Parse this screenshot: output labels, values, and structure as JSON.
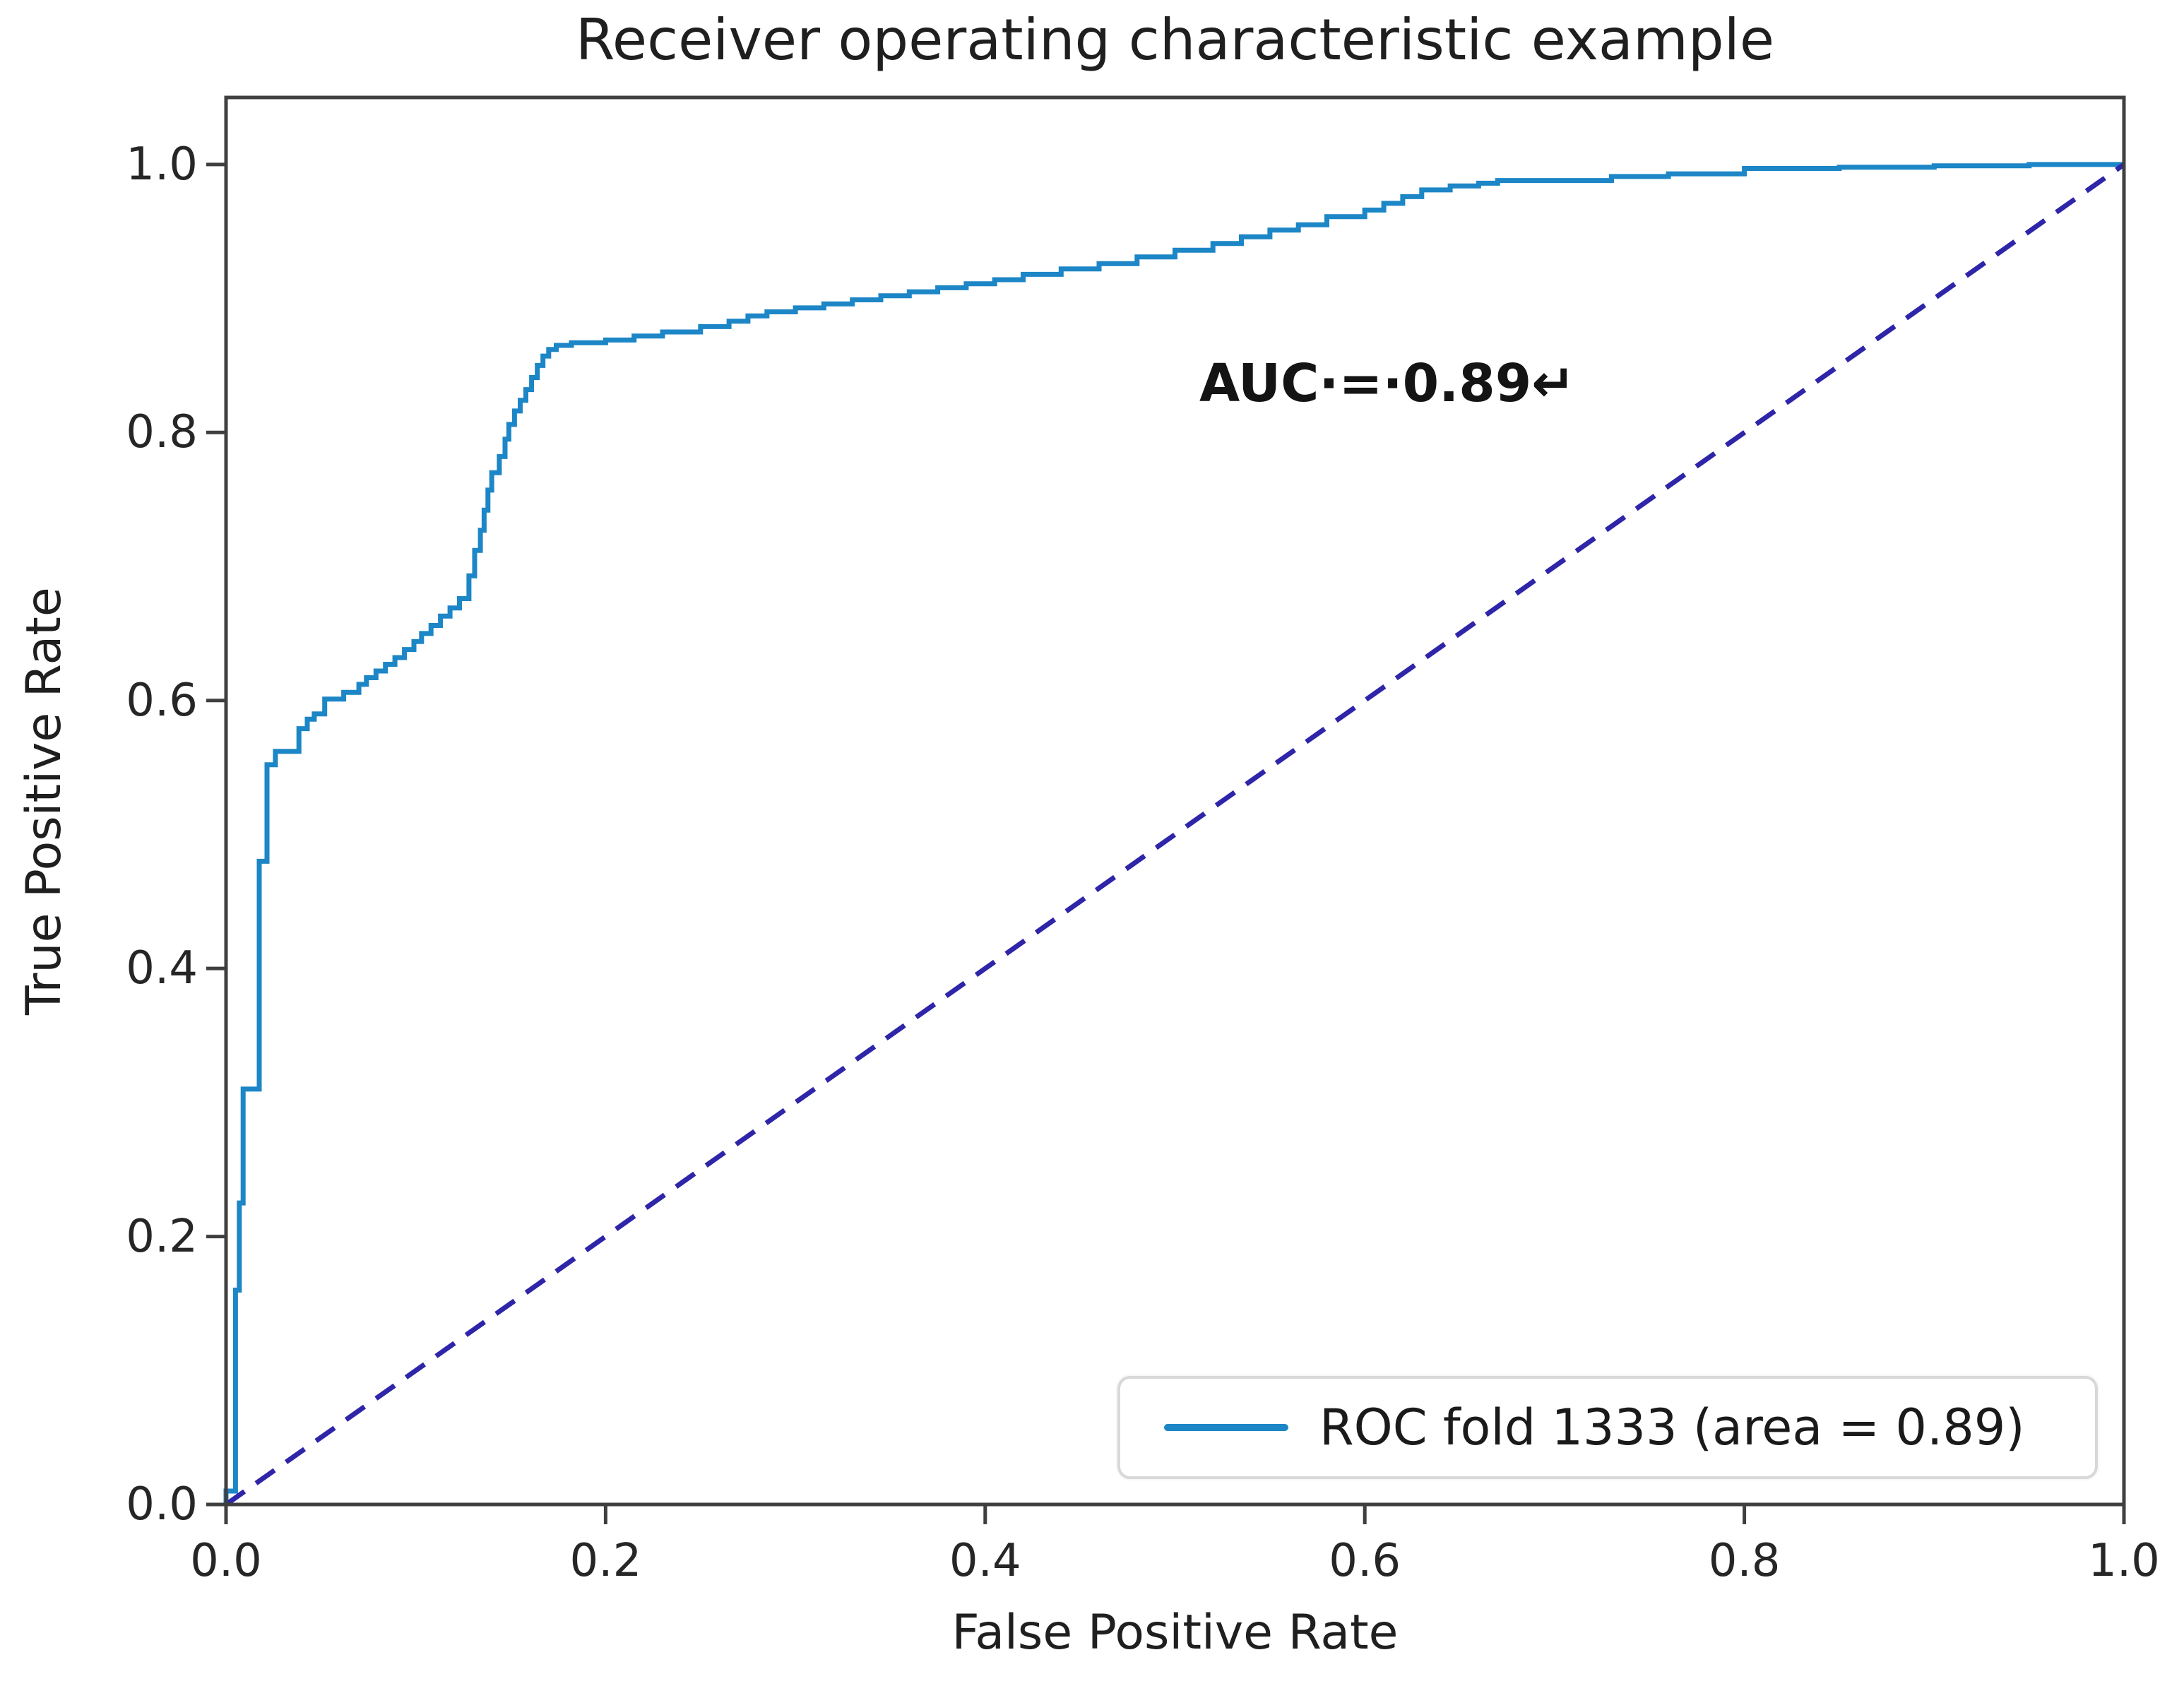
{
  "chart_data": {
    "type": "line",
    "title": "Receiver operating characteristic example",
    "xlabel": "False Positive Rate",
    "ylabel": "True Positive Rate",
    "xlim": [
      0.0,
      1.0
    ],
    "ylim": [
      0.0,
      1.05
    ],
    "xticks": [
      0.0,
      0.2,
      0.4,
      0.6,
      0.8,
      1.0
    ],
    "yticks": [
      0.0,
      0.2,
      0.4,
      0.6,
      0.8,
      1.0
    ],
    "grid": false,
    "axis_color": "#3f3f3f",
    "annotation": {
      "text": "AUC·=·0.89↵",
      "x": 0.513,
      "y": 0.833
    },
    "legend": {
      "position": "lower right",
      "entries": [
        {
          "label": "ROC fold 1333 (area = 0.89)",
          "color": "#1c86c6"
        }
      ]
    },
    "series": [
      {
        "name": "ROC fold 1333 (area = 0.89)",
        "role": "roc-curve",
        "color": "#1c86c6",
        "line_width": 7,
        "style": "step",
        "points": [
          [
            0,
            0
          ],
          [
            0.005,
            0.01
          ],
          [
            0.005,
            0.16
          ],
          [
            0.007,
            0.16
          ],
          [
            0.007,
            0.225
          ],
          [
            0.009,
            0.225
          ],
          [
            0.009,
            0.305
          ],
          [
            0.0105,
            0.31
          ],
          [
            0.0175,
            0.31
          ],
          [
            0.0175,
            0.48
          ],
          [
            0.0216,
            0.48
          ],
          [
            0.0216,
            0.534
          ],
          [
            0.026,
            0.552
          ],
          [
            0.0285,
            0.562
          ],
          [
            0.0384,
            0.562
          ],
          [
            0.0384,
            0.569
          ],
          [
            0.0428,
            0.579
          ],
          [
            0.0465,
            0.586
          ],
          [
            0.052,
            0.59
          ],
          [
            0.062,
            0.601
          ],
          [
            0.07,
            0.606
          ],
          [
            0.074,
            0.612
          ],
          [
            0.079,
            0.617
          ],
          [
            0.084,
            0.622
          ],
          [
            0.089,
            0.627
          ],
          [
            0.094,
            0.632
          ],
          [
            0.099,
            0.638
          ],
          [
            0.103,
            0.644
          ],
          [
            0.108,
            0.65
          ],
          [
            0.113,
            0.656
          ],
          [
            0.118,
            0.663
          ],
          [
            0.123,
            0.669
          ],
          [
            0.128,
            0.676
          ],
          [
            0.131,
            0.693
          ],
          [
            0.134,
            0.712
          ],
          [
            0.136,
            0.727
          ],
          [
            0.138,
            0.742
          ],
          [
            0.14,
            0.757
          ],
          [
            0.144,
            0.77
          ],
          [
            0.147,
            0.782
          ],
          [
            0.149,
            0.795
          ],
          [
            0.152,
            0.806
          ],
          [
            0.155,
            0.816
          ],
          [
            0.158,
            0.824
          ],
          [
            0.161,
            0.832
          ],
          [
            0.164,
            0.841
          ],
          [
            0.167,
            0.85
          ],
          [
            0.17,
            0.857
          ],
          [
            0.174,
            0.862
          ],
          [
            0.182,
            0.865
          ],
          [
            0.2,
            0.867
          ],
          [
            0.215,
            0.869
          ],
          [
            0.23,
            0.872
          ],
          [
            0.25,
            0.875
          ],
          [
            0.265,
            0.879
          ],
          [
            0.275,
            0.883
          ],
          [
            0.285,
            0.887
          ],
          [
            0.3,
            0.89
          ],
          [
            0.315,
            0.893
          ],
          [
            0.33,
            0.896
          ],
          [
            0.345,
            0.899
          ],
          [
            0.36,
            0.902
          ],
          [
            0.375,
            0.905
          ],
          [
            0.39,
            0.908
          ],
          [
            0.405,
            0.911
          ],
          [
            0.42,
            0.914
          ],
          [
            0.44,
            0.918
          ],
          [
            0.46,
            0.922
          ],
          [
            0.48,
            0.926
          ],
          [
            0.5,
            0.931
          ],
          [
            0.52,
            0.936
          ],
          [
            0.535,
            0.941
          ],
          [
            0.55,
            0.946
          ],
          [
            0.565,
            0.951
          ],
          [
            0.58,
            0.955
          ],
          [
            0.6,
            0.961
          ],
          [
            0.61,
            0.966
          ],
          [
            0.62,
            0.971
          ],
          [
            0.63,
            0.976
          ],
          [
            0.645,
            0.981
          ],
          [
            0.66,
            0.984
          ],
          [
            0.67,
            0.986
          ],
          [
            0.73,
            0.988
          ],
          [
            0.76,
            0.991
          ],
          [
            0.8,
            0.993
          ],
          [
            0.85,
            0.997
          ],
          [
            0.9,
            0.998
          ],
          [
            0.95,
            0.999
          ],
          [
            0.995,
            1
          ],
          [
            1,
            1
          ]
        ]
      },
      {
        "name": "chance-diagonal",
        "role": "reference-line",
        "color": "#2e25a8",
        "line_width": 7,
        "style": "line",
        "dash": [
          32,
          20
        ],
        "points": [
          [
            0,
            0
          ],
          [
            1,
            1
          ]
        ]
      }
    ]
  }
}
